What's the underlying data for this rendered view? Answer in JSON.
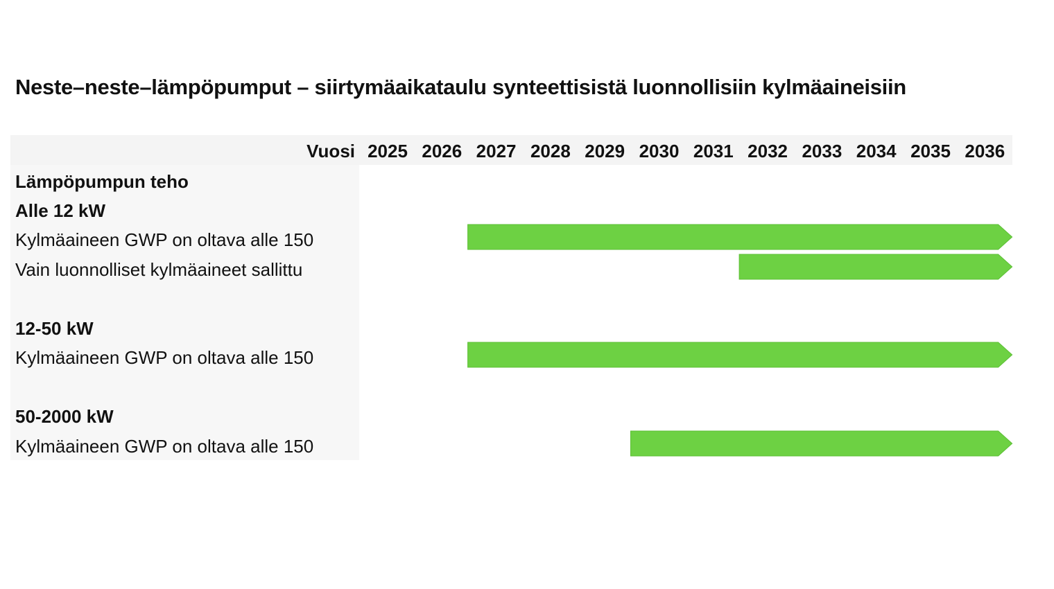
{
  "title": "Neste–neste–lämpöpumput – siirtymäaikataulu synteettisistä luonnollisiin kylmäaineisiin",
  "chart_data": {
    "type": "gantt",
    "title": "Neste–neste–lämpöpumput – siirtymäaikataulu synteettisistä luonnollisiin kylmäaineisiin",
    "year_header": "Vuosi",
    "years": [
      "2025",
      "2026",
      "2027",
      "2028",
      "2029",
      "2030",
      "2031",
      "2032",
      "2033",
      "2034",
      "2035",
      "2036"
    ],
    "color": "#6dd143",
    "rows": [
      {
        "label": "Lämpöpumpun teho",
        "kind": "header"
      },
      {
        "label": "Alle 12 kW",
        "kind": "group"
      },
      {
        "label": "Kylmäaineen GWP on oltava alle 150",
        "kind": "item",
        "start": 2027,
        "end": 2036,
        "open_end": true
      },
      {
        "label": "Vain luonnolliset kylmäaineet sallittu",
        "kind": "item",
        "start": 2032,
        "end": 2036,
        "open_end": true
      },
      {
        "label": "",
        "kind": "spacer"
      },
      {
        "label": "12-50 kW",
        "kind": "group"
      },
      {
        "label": "Kylmäaineen GWP on oltava alle 150",
        "kind": "item",
        "start": 2027,
        "end": 2036,
        "open_end": true
      },
      {
        "label": "",
        "kind": "spacer"
      },
      {
        "label": "50-2000 kW",
        "kind": "group"
      },
      {
        "label": "Kylmäaineen GWP on oltava alle 150",
        "kind": "item",
        "start": 2030,
        "end": 2036,
        "open_end": true
      }
    ]
  }
}
